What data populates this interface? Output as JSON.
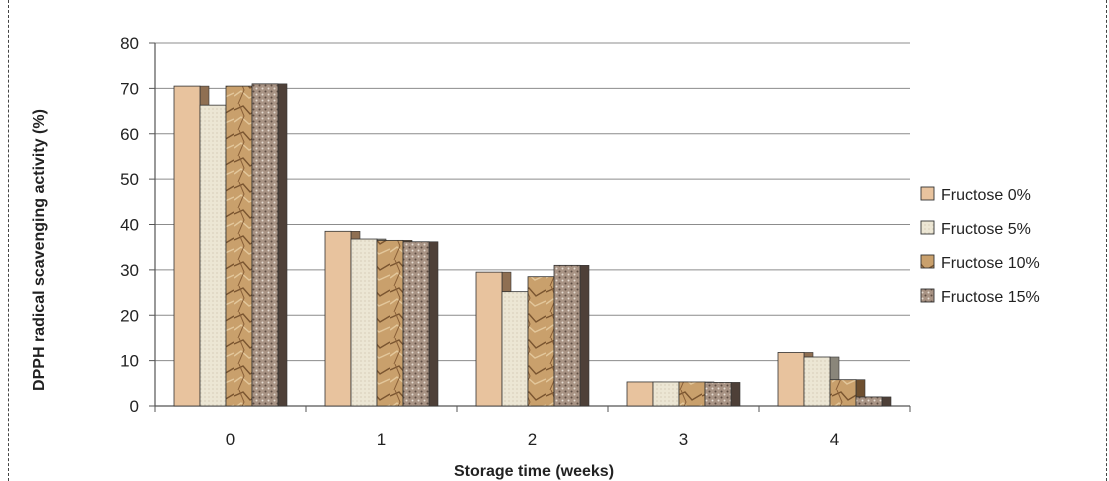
{
  "chart_data": {
    "type": "bar",
    "title": "",
    "xlabel": "Storage time (weeks)",
    "ylabel": "DPPH radical  scavenging activity (%)",
    "categories": [
      "0",
      "1",
      "2",
      "3",
      "4"
    ],
    "series": [
      {
        "name": "Fructose 0%",
        "values": [
          70.5,
          38.5,
          29.5,
          5.3,
          11.8
        ]
      },
      {
        "name": "Fructose 5%",
        "values": [
          66.3,
          36.8,
          25.2,
          5.3,
          10.8
        ]
      },
      {
        "name": "Fructose 10%",
        "values": [
          70.5,
          36.5,
          28.5,
          5.3,
          5.8
        ]
      },
      {
        "name": "Fructose 15%",
        "values": [
          71.0,
          36.2,
          31.0,
          5.2,
          2.0
        ]
      }
    ],
    "ylim": [
      0,
      80
    ],
    "yticks": [
      0,
      10,
      20,
      30,
      40,
      50,
      60,
      70,
      80
    ],
    "grid": true,
    "legend_position": "right",
    "colors": {
      "series": [
        "#e8c39e",
        "#ece6d4",
        "#c9a06c",
        "#a89384"
      ],
      "side_shade": [
        "#8f6f52",
        "#8a867a",
        "#6e4f2f",
        "#4e4038"
      ],
      "grid": "#8c8c8c",
      "axis": "#555555"
    }
  }
}
